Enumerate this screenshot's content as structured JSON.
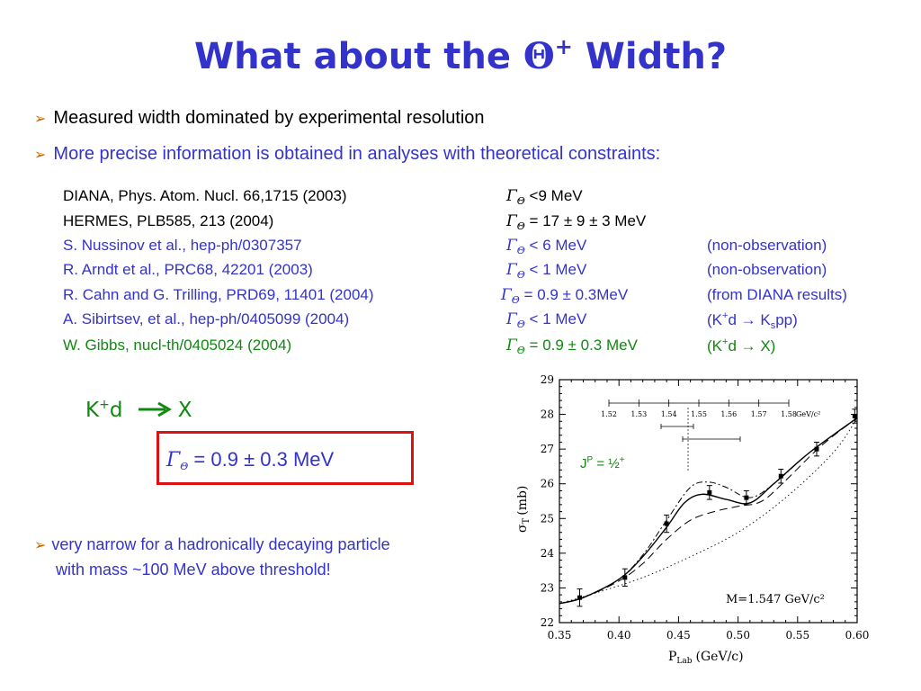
{
  "title": {
    "prefix": "What about the ",
    "symbol": "Θ",
    "sup": "+",
    "suffix": " Width?"
  },
  "bullets": [
    {
      "text": "Measured width dominated by experimental resolution",
      "color": "#000000"
    },
    {
      "text": "More precise information is obtained in analyses with theoretical constraints:",
      "color": "#3333cc"
    }
  ],
  "refs": [
    {
      "ref": "DIANA,  Phys. Atom. Nucl. 66,1715 (2003)",
      "result": " <9 MeV",
      "note": "",
      "color": "#000000"
    },
    {
      "ref": "HERMES, PLB585, 213 (2004)",
      "result": " = 17 ± 9 ± 3 MeV",
      "note": "",
      "color": "#000000"
    },
    {
      "ref": "S. Nussinov et al., hep-ph/0307357",
      "result": " <  6 MeV",
      "note": "(non-observation)",
      "color": "#3333cc"
    },
    {
      "ref": "R. Arndt et al.,  PRC68, 42201 (2003)",
      "result": " <  1 MeV",
      "note": "(non-observation)",
      "color": "#3333cc"
    },
    {
      "ref": "R. Cahn and G. Trilling, PRD69, 11401 (2004)",
      "result": " = 0.9 ± 0.3MeV",
      "note": "(from DIANA results)",
      "color": "#3333cc"
    },
    {
      "ref": "A. Sibirtsev, et al., hep-ph/0405099 (2004)",
      "result": " <  1 MeV",
      "note_a": "(K",
      "note_b": "d → K",
      "note_c": "pp)",
      "color": "#3333cc"
    },
    {
      "ref": "W. Gibbs, nucl-th/0405024 (2004)",
      "result": " = 0.9 ± 0.3 MeV",
      "note_a": "(K",
      "note_b": "d → X)",
      "color": "#118811"
    }
  ],
  "gamma": {
    "symbol": "Γ",
    "sub": "Θ",
    "sup_plus": "+",
    "sub_s": "s"
  },
  "reaction": {
    "k": "K",
    "plus": "+",
    "d": "d",
    "x": "X"
  },
  "result_box": {
    "text": " = 0.9 ± 0.3 MeV"
  },
  "narrow": {
    "line1": "very narrow for a hadronically decaying particle",
    "line2": "with mass ~100 MeV above threshold!"
  },
  "plot": {
    "jp_label": "J",
    "jp_sup": "P",
    "jp_value": " = ½",
    "jp_plus": "+",
    "mass_label": "M=1.547  GeV/c²",
    "ylabel_sigma": "σ",
    "ylabel_T": "T",
    "ylabel_unit": "(mb)",
    "xlabel_p": "P",
    "xlabel_sub": "Lab",
    "xlabel_unit": "(GeV/c)",
    "inset_ticks": [
      "1.52",
      "1.53",
      "1.54",
      "1.55",
      "1.56",
      "1.57",
      "1.58"
    ],
    "inset_unit": "GeV/c²"
  },
  "chart_data": {
    "type": "line",
    "xlabel": "P_Lab (GeV/c)",
    "ylabel": "σ_T (mb)",
    "xlim": [
      0.35,
      0.6
    ],
    "ylim": [
      22,
      29
    ],
    "xticks": [
      "0.35",
      "0.40",
      "0.45",
      "0.50",
      "0.55",
      "0.60"
    ],
    "yticks": [
      "22",
      "23",
      "24",
      "25",
      "26",
      "27",
      "28",
      "29"
    ],
    "points": [
      {
        "x": 0.367,
        "y": 22.72,
        "err": 0.25
      },
      {
        "x": 0.405,
        "y": 23.3,
        "err": 0.25
      },
      {
        "x": 0.44,
        "y": 24.85,
        "err": 0.25
      },
      {
        "x": 0.476,
        "y": 25.75,
        "err": 0.2
      },
      {
        "x": 0.507,
        "y": 25.6,
        "err": 0.2
      },
      {
        "x": 0.536,
        "y": 26.22,
        "err": 0.2
      },
      {
        "x": 0.566,
        "y": 27.0,
        "err": 0.2
      },
      {
        "x": 0.598,
        "y": 27.95,
        "err": 0.2
      }
    ],
    "series": [
      {
        "x": [
          0.35,
          0.37,
          0.4,
          0.42,
          0.44,
          0.455,
          0.47,
          0.49,
          0.51,
          0.53,
          0.56,
          0.6
        ],
        "y": [
          22.55,
          22.72,
          23.25,
          23.9,
          24.75,
          25.45,
          25.7,
          25.55,
          25.45,
          26.0,
          26.9,
          27.9
        ]
      },
      {
        "x": [
          0.35,
          0.37,
          0.4,
          0.42,
          0.44,
          0.46,
          0.475,
          0.49,
          0.51,
          0.53,
          0.56,
          0.6
        ],
        "y": [
          22.55,
          22.72,
          23.25,
          23.95,
          24.95,
          25.9,
          26.05,
          25.9,
          25.6,
          26.0,
          26.9,
          27.9
        ]
      },
      {
        "x": [
          0.35,
          0.37,
          0.4,
          0.42,
          0.44,
          0.46,
          0.48,
          0.5,
          0.52,
          0.54,
          0.57,
          0.6
        ],
        "y": [
          22.55,
          22.72,
          23.2,
          23.7,
          24.4,
          24.95,
          25.2,
          25.35,
          25.5,
          26.1,
          27.1,
          27.9
        ]
      },
      {
        "x": [
          0.35,
          0.38,
          0.42,
          0.46,
          0.5,
          0.54,
          0.58,
          0.6
        ],
        "y": [
          22.55,
          22.85,
          23.3,
          23.9,
          24.6,
          25.6,
          26.9,
          27.9
        ]
      }
    ],
    "inset": {
      "bins": [
        "1.52",
        "1.53",
        "1.54",
        "1.55",
        "1.56",
        "1.57",
        "1.58"
      ]
    }
  }
}
